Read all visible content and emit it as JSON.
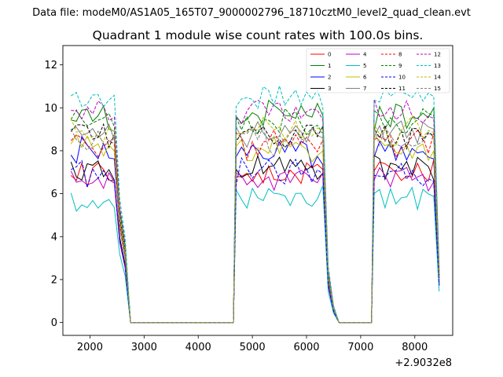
{
  "suptitle": "Data file: modeM0/AS1A05_165T07_9000002796_18710cztM0_level2_quad_clean.evt",
  "chart_data": {
    "type": "line",
    "title": "Quadrant 1 module wise count rates with 100.0s bins.",
    "xlabel": "",
    "ylabel": "",
    "xlim": [
      1500,
      8700
    ],
    "ylim": [
      -0.6,
      12.9
    ],
    "x_offset_label": "+2.9032e8",
    "xticks": [
      2000,
      3000,
      4000,
      5000,
      6000,
      7000,
      8000
    ],
    "xtick_labels": [
      "2000",
      "3000",
      "4000",
      "5000",
      "6000",
      "7000",
      "8000"
    ],
    "yticks": [
      0,
      2,
      4,
      6,
      8,
      10,
      12
    ],
    "ytick_labels": [
      "0",
      "2",
      "4",
      "6",
      "8",
      "10",
      "12"
    ],
    "grid": false,
    "legend_position": "top-right",
    "segments": [
      {
        "start": 1650,
        "n_active": 9,
        "trans": [
          4.0,
          1.5
        ],
        "zeros": 20
      },
      {
        "start": 4700,
        "n_active": 17,
        "trans": [
          1.0,
          0.3
        ],
        "zeros": 7
      },
      {
        "start": 7250,
        "n_active": 12,
        "trans": [
          1.0
        ],
        "zeros": 0
      }
    ],
    "series": [
      {
        "name": "0",
        "color": "#ff0000",
        "dash": "solid",
        "level": 7.0,
        "seed": 11
      },
      {
        "name": "1",
        "color": "#008000",
        "dash": "solid",
        "level": 9.6,
        "seed": 12
      },
      {
        "name": "2",
        "color": "#0000ff",
        "dash": "solid",
        "level": 8.0,
        "seed": 13
      },
      {
        "name": "3",
        "color": "#000000",
        "dash": "solid",
        "level": 7.2,
        "seed": 14
      },
      {
        "name": "4",
        "color": "#bf00bf",
        "dash": "solid",
        "level": 6.8,
        "seed": 15
      },
      {
        "name": "5",
        "color": "#00bfbf",
        "dash": "solid",
        "level": 5.8,
        "seed": 16
      },
      {
        "name": "6",
        "color": "#bfbf00",
        "dash": "solid",
        "level": 8.1,
        "seed": 17
      },
      {
        "name": "7",
        "color": "#808080",
        "dash": "solid",
        "level": 8.8,
        "seed": 18
      },
      {
        "name": "8",
        "color": "#ff0000",
        "dash": "dashed",
        "level": 8.3,
        "seed": 19
      },
      {
        "name": "9",
        "color": "#008000",
        "dash": "dashed",
        "level": 9.3,
        "seed": 20
      },
      {
        "name": "10",
        "color": "#0000ff",
        "dash": "dashed",
        "level": 7.0,
        "seed": 21
      },
      {
        "name": "11",
        "color": "#000000",
        "dash": "dashed",
        "level": 8.8,
        "seed": 22
      },
      {
        "name": "12",
        "color": "#bf00bf",
        "dash": "dashed",
        "level": 9.8,
        "seed": 23
      },
      {
        "name": "13",
        "color": "#00bfbf",
        "dash": "dashed",
        "level": 10.5,
        "seed": 24
      },
      {
        "name": "14",
        "color": "#bfbf00",
        "dash": "dashed",
        "level": 9.0,
        "seed": 25
      },
      {
        "name": "15",
        "color": "#808080",
        "dash": "dashed",
        "level": 8.5,
        "seed": 26
      }
    ]
  }
}
